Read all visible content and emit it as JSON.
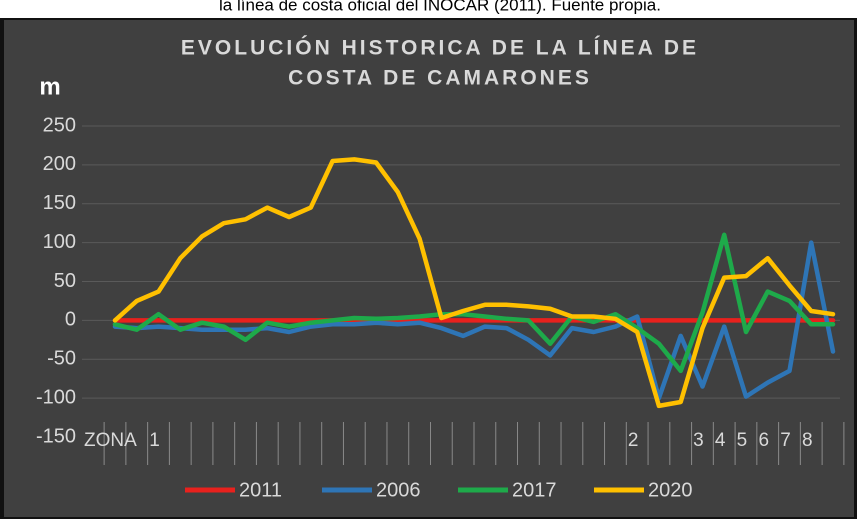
{
  "caption": "la línea de costa oficial del INOCAR (2011). Fuente propia.",
  "chart_data": {
    "type": "line",
    "title_lines": [
      "EVOLUCIÓN HISTORICA DE LA LÍNEA DE",
      "COSTA DE CAMARONES"
    ],
    "y_label": "m",
    "categories": [
      "ZONA",
      null,
      "1",
      null,
      null,
      null,
      null,
      null,
      null,
      null,
      null,
      null,
      null,
      null,
      null,
      null,
      null,
      null,
      null,
      null,
      null,
      null,
      null,
      null,
      "2",
      null,
      null,
      "3",
      "4",
      "5",
      "6",
      "7",
      "8",
      null
    ],
    "series": [
      {
        "name": "2011",
        "color": "#e8211d",
        "values": [
          0,
          0,
          0,
          0,
          0,
          0,
          0,
          0,
          0,
          0,
          0,
          0,
          0,
          0,
          0,
          0,
          0,
          0,
          0,
          0,
          0,
          0,
          0,
          0,
          0,
          0,
          0,
          0,
          0,
          0,
          0,
          0,
          0,
          0
        ]
      },
      {
        "name": "2006",
        "color": "#2e75b6",
        "values": [
          -8,
          -10,
          -8,
          -10,
          -12,
          -12,
          -12,
          -10,
          -15,
          -8,
          -5,
          -5,
          -3,
          -5,
          -3,
          -10,
          -20,
          -8,
          -10,
          -25,
          -45,
          -10,
          -15,
          -8,
          5,
          -100,
          -20,
          -85,
          -8,
          -98,
          -80,
          -65,
          100,
          -40
        ]
      },
      {
        "name": "2017",
        "color": "#1eaa4a",
        "values": [
          -5,
          -12,
          8,
          -12,
          -3,
          -8,
          -25,
          -3,
          -8,
          -3,
          0,
          3,
          2,
          3,
          5,
          8,
          8,
          5,
          2,
          0,
          -30,
          5,
          -2,
          8,
          -10,
          -30,
          -65,
          10,
          110,
          -15,
          37,
          25,
          -5,
          -5
        ]
      },
      {
        "name": "2020",
        "color": "#ffc000",
        "values": [
          0,
          25,
          37,
          80,
          108,
          125,
          130,
          145,
          133,
          145,
          205,
          207,
          203,
          165,
          105,
          3,
          12,
          20,
          20,
          18,
          15,
          5,
          5,
          2,
          -15,
          -110,
          -105,
          -10,
          55,
          57,
          80,
          45,
          12,
          8
        ]
      }
    ],
    "ylim": [
      -150,
      250
    ],
    "yticks": [
      250,
      200,
      150,
      100,
      50,
      0,
      -50,
      -100,
      -150
    ],
    "grid": true
  }
}
